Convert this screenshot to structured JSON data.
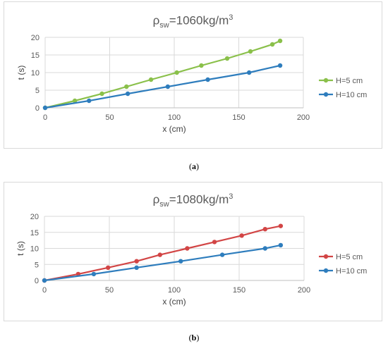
{
  "chart_data": [
    {
      "type": "line",
      "title": {
        "prefix": "ρ",
        "sub": "sw",
        "main": "=1060kg/m",
        "sup": "3"
      },
      "xlabel": "x (cm)",
      "ylabel": "t (s)",
      "xlim": [
        0,
        200
      ],
      "ylim": [
        0,
        20
      ],
      "xticks": [
        "0",
        "50",
        "100",
        "150",
        "200"
      ],
      "yticks": [
        "0",
        "5",
        "10",
        "15",
        "20"
      ],
      "grid": true,
      "legend_position": "right",
      "caption": "a",
      "series": [
        {
          "name": "H=5 cm",
          "color": "#8ac04a",
          "x": [
            0,
            23,
            44,
            63,
            82,
            102,
            121,
            141,
            159,
            176,
            182
          ],
          "y": [
            0,
            2,
            4,
            6,
            8,
            10,
            12,
            14,
            16,
            18,
            19
          ]
        },
        {
          "name": "H=10 cm",
          "color": "#2e7dbd",
          "x": [
            0,
            34,
            64,
            95,
            126,
            158,
            182
          ],
          "y": [
            0,
            2,
            4,
            6,
            8,
            10,
            12
          ]
        }
      ]
    },
    {
      "type": "line",
      "title": {
        "prefix": "ρ",
        "sub": "sw",
        "main": "=1080kg/m",
        "sup": "3"
      },
      "xlabel": "x (cm)",
      "ylabel": "t (s)",
      "xlim": [
        0,
        200
      ],
      "ylim": [
        0,
        20
      ],
      "xticks": [
        "0",
        "50",
        "100",
        "150",
        "200"
      ],
      "yticks": [
        "0",
        "5",
        "10",
        "15",
        "20"
      ],
      "grid": true,
      "legend_position": "right",
      "caption": "b",
      "series": [
        {
          "name": "H=5 cm",
          "color": "#d24545",
          "x": [
            0,
            26,
            49,
            71,
            89,
            110,
            131,
            152,
            170,
            182
          ],
          "y": [
            0,
            2,
            4,
            6,
            8,
            10,
            12,
            14,
            16,
            17
          ]
        },
        {
          "name": "H=10 cm",
          "color": "#2e7dbd",
          "x": [
            0,
            38,
            71,
            105,
            137,
            170,
            182
          ],
          "y": [
            0,
            2,
            4,
            6,
            8,
            10,
            11
          ]
        }
      ]
    }
  ]
}
